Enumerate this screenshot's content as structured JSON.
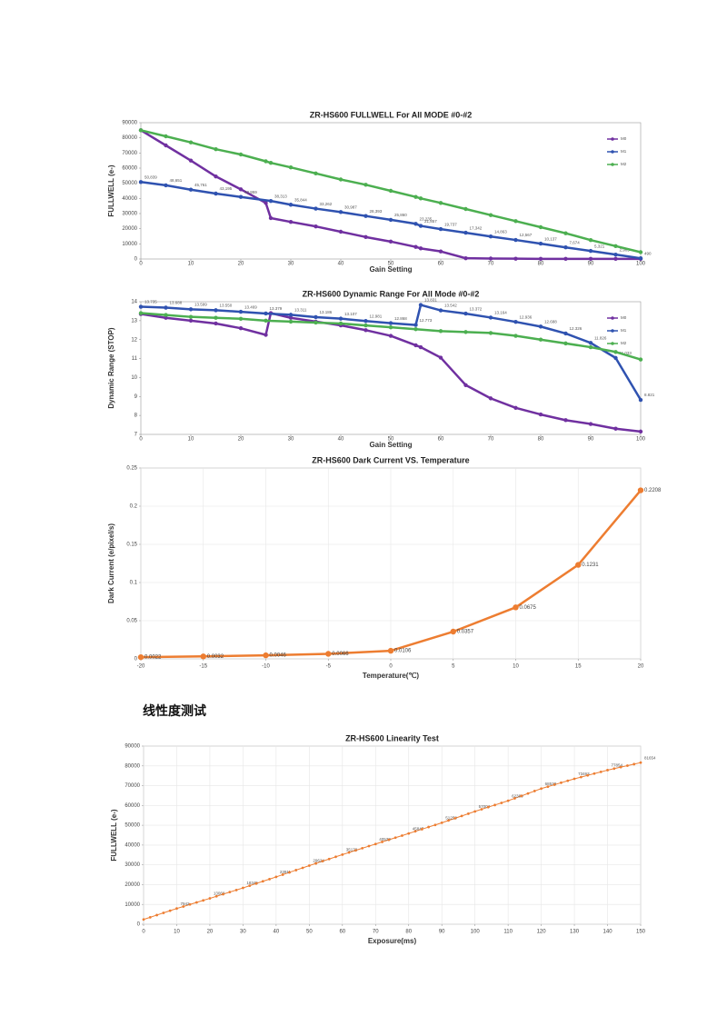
{
  "heading": "线性度测试",
  "chart_data": [
    {
      "type": "line",
      "title": "ZR-HS600 FULLWELL For All MODE #0-#2",
      "x_label": "Gain Setting",
      "y_label": "FULLWELL (e-)",
      "xlim": [
        0,
        100
      ],
      "xticks": [
        0,
        10,
        20,
        30,
        40,
        50,
        60,
        70,
        80,
        90,
        100
      ],
      "ylim": [
        0,
        90000
      ],
      "yticks": [
        0,
        10000,
        20000,
        30000,
        40000,
        50000,
        60000,
        70000,
        80000,
        90000
      ],
      "grid": false,
      "legend": "right",
      "series": [
        {
          "name": "M0",
          "color": "#7030a0",
          "x": [
            0,
            5,
            10,
            15,
            20,
            25,
            26,
            30,
            35,
            40,
            45,
            50,
            55,
            56,
            60,
            65,
            70,
            75,
            80,
            85,
            90,
            95,
            100
          ],
          "values": [
            85000,
            75000,
            65000,
            54500,
            46000,
            37000,
            27000,
            24500,
            21500,
            18000,
            14500,
            11500,
            8000,
            7000,
            5000,
            500,
            300,
            200,
            100,
            100,
            100,
            100,
            100
          ]
        },
        {
          "name": "M1",
          "color": "#2f52b0",
          "x": [
            0,
            5,
            10,
            15,
            20,
            26,
            30,
            35,
            40,
            45,
            50,
            55,
            56,
            60,
            65,
            70,
            75,
            80,
            85,
            90,
            95,
            100
          ],
          "values": [
            50839,
            48651,
            45761,
            43195,
            40959,
            38313,
            35844,
            33262,
            30987,
            28393,
            25860,
            23235,
            21857,
            19737,
            17342,
            14863,
            12567,
            10137,
            7674,
            5321,
            2905,
            490
          ],
          "value_labels": [
            "50,839",
            "48,651",
            "45,761",
            "43,195",
            "40,959",
            "38,313",
            "35,844",
            "33,262",
            "30,987",
            "28,393",
            "25,860",
            "23,235",
            "21,857",
            "19,737",
            "17,342",
            "14,863",
            "12,567",
            "10,137",
            "7,674",
            "5,321",
            "2,905",
            "490"
          ]
        },
        {
          "name": "M2",
          "color": "#4caf50",
          "x": [
            0,
            5,
            10,
            15,
            20,
            25,
            26,
            30,
            35,
            40,
            45,
            50,
            55,
            56,
            60,
            65,
            70,
            75,
            80,
            85,
            90,
            95,
            100
          ],
          "values": [
            85000,
            81000,
            77000,
            72500,
            69000,
            64500,
            63500,
            60500,
            56500,
            52500,
            49000,
            45000,
            41000,
            40000,
            37000,
            33000,
            29000,
            25000,
            21000,
            17000,
            12500,
            8500,
            4500
          ]
        }
      ]
    },
    {
      "type": "line",
      "title": "ZR-HS600 Dynamic Range For All Mode #0-#2",
      "x_label": "Gain Setting",
      "y_label": "Dynamic Range (STOP)",
      "xlim": [
        0,
        100
      ],
      "xticks": [
        0,
        10,
        20,
        30,
        40,
        50,
        60,
        70,
        80,
        90,
        100
      ],
      "ylim": [
        7,
        14
      ],
      "yticks": [
        7,
        8,
        9,
        10,
        11,
        12,
        13,
        14
      ],
      "grid": false,
      "legend": "right",
      "series": [
        {
          "name": "M0",
          "color": "#7030a0",
          "x": [
            0,
            5,
            10,
            15,
            20,
            25,
            26,
            30,
            35,
            40,
            45,
            50,
            55,
            56,
            60,
            65,
            70,
            75,
            80,
            85,
            90,
            95,
            100
          ],
          "values": [
            13.35,
            13.15,
            13.0,
            12.85,
            12.6,
            12.25,
            13.4,
            13.15,
            12.95,
            12.75,
            12.5,
            12.2,
            11.7,
            11.6,
            11.05,
            9.6,
            8.9,
            8.4,
            8.05,
            7.75,
            7.55,
            7.3,
            7.15
          ]
        },
        {
          "name": "M1",
          "color": "#2f52b0",
          "data_labels": true,
          "x": [
            0,
            5,
            10,
            15,
            20,
            25,
            30,
            35,
            40,
            45,
            50,
            55,
            56,
            60,
            65,
            70,
            75,
            80,
            85,
            90,
            95,
            100
          ],
          "values": [
            13.735,
            13.688,
            13.599,
            13.55,
            13.469,
            13.379,
            13.311,
            13.186,
            13.107,
            12.981,
            12.868,
            12.773,
            13.831,
            13.542,
            13.372,
            13.164,
            12.936,
            12.688,
            12.326,
            11.826,
            11.033,
            8.821
          ],
          "value_labels": [
            "13.735",
            "13.688",
            "13.599",
            "13.550",
            "13.469",
            "13.379",
            "13.311",
            "13.186",
            "13.107",
            "12.981",
            "12.868",
            "12.773",
            "13.831",
            "13.542",
            "13.372",
            "13.164",
            "12.936",
            "12.688",
            "12.326",
            "11.826",
            "11.033",
            "8.821"
          ]
        },
        {
          "name": "M2",
          "color": "#4caf50",
          "x": [
            0,
            5,
            10,
            15,
            20,
            25,
            30,
            35,
            40,
            45,
            50,
            55,
            60,
            65,
            70,
            75,
            80,
            85,
            90,
            95,
            100
          ],
          "values": [
            13.4,
            13.3,
            13.2,
            13.15,
            13.1,
            13.0,
            12.95,
            12.9,
            12.85,
            12.75,
            12.65,
            12.55,
            12.45,
            12.4,
            12.35,
            12.2,
            12.0,
            11.8,
            11.6,
            11.35,
            10.95
          ]
        }
      ]
    },
    {
      "type": "line",
      "title": "ZR-HS600 Dark Current VS. Temperature",
      "x_label": "Temperature(℃)",
      "y_label": "Dark Current (e/pixel/s)",
      "xlim": [
        -20,
        20
      ],
      "xticks": [
        -20,
        -15,
        -10,
        -5,
        0,
        5,
        10,
        15,
        20
      ],
      "ylim": [
        0,
        0.25
      ],
      "yticks": [
        0,
        0.05,
        0.1,
        0.15,
        0.2,
        0.25
      ],
      "grid": true,
      "series": [
        {
          "color": "#ed7d31",
          "data_labels": true,
          "x": [
            -20,
            -15,
            -10,
            -5,
            0,
            5,
            10,
            15,
            20
          ],
          "values": [
            0.0022,
            0.0032,
            0.0046,
            0.0066,
            0.0106,
            0.0357,
            0.0675,
            0.1231,
            0.2208
          ]
        }
      ]
    },
    {
      "type": "line",
      "title": "ZR-HS600 Linearity Test",
      "x_label": "Exposure(ms)",
      "y_label": "FULLWELL (e-)",
      "xlim": [
        0,
        150
      ],
      "xticks": [
        0,
        10,
        20,
        30,
        40,
        50,
        60,
        70,
        80,
        90,
        100,
        110,
        120,
        130,
        140,
        150
      ],
      "ylim": [
        0,
        90000
      ],
      "yticks": [
        0,
        10000,
        20000,
        30000,
        40000,
        50000,
        60000,
        70000,
        80000,
        90000
      ],
      "grid": true,
      "series": [
        {
          "color": "#ed7d31",
          "data_labels": true,
          "x": [
            0,
            2,
            4,
            6,
            8,
            10,
            12,
            14,
            16,
            18,
            20,
            22,
            24,
            26,
            28,
            30,
            32,
            34,
            36,
            38,
            40,
            42,
            44,
            46,
            48,
            50,
            52,
            54,
            56,
            58,
            60,
            62,
            64,
            66,
            68,
            70,
            72,
            74,
            76,
            78,
            80,
            82,
            84,
            86,
            88,
            90,
            92,
            94,
            96,
            98,
            100,
            102,
            104,
            106,
            108,
            110,
            112,
            114,
            116,
            118,
            120,
            122,
            124,
            126,
            128,
            130,
            132,
            134,
            136,
            138,
            140,
            142,
            144,
            146,
            148,
            150
          ],
          "values": [
            2400,
            3508,
            4617,
            5725,
            6834,
            7942,
            8966,
            9989,
            11013,
            12036,
            13060,
            14117,
            15174,
            16231,
            17288,
            18345,
            19458,
            20571,
            21685,
            22798,
            23911,
            25054,
            26196,
            27339,
            28481,
            29624,
            30735,
            31846,
            32956,
            34067,
            35178,
            36249,
            37320,
            38391,
            39462,
            40533,
            41596,
            42659,
            43721,
            44784,
            45847,
            46929,
            48011,
            49094,
            50176,
            51258,
            52407,
            53556,
            54706,
            55855,
            57004,
            58079,
            59154,
            60229,
            61305,
            62380,
            63612,
            64843,
            66075,
            67306,
            68538,
            69523,
            70508,
            71493,
            72478,
            73463,
            74341,
            75219,
            76097,
            76976,
            77854,
            78614,
            79374,
            80134,
            80894,
            81654
          ]
        }
      ]
    }
  ]
}
